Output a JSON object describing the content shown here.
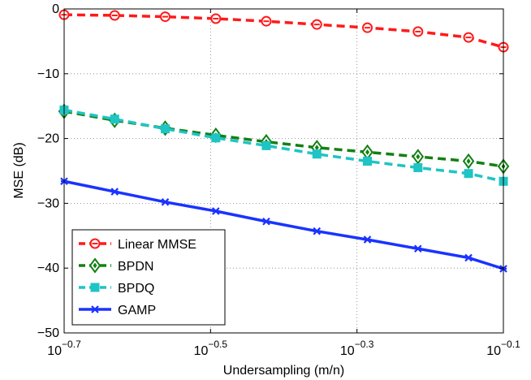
{
  "chart_data": {
    "type": "line",
    "title": "",
    "xlabel": "Undersampling (m/n)",
    "ylabel": "MSE (dB)",
    "x_scale": "log",
    "xlim": [
      0.19953,
      0.79433
    ],
    "ylim": [
      -50,
      0
    ],
    "grid": true,
    "legend_position": "bottom-left",
    "x_ticks": [
      {
        "value": 0.19953,
        "base": "10",
        "exp": "−0.7"
      },
      {
        "value": 0.31623,
        "base": "10",
        "exp": "−0.5"
      },
      {
        "value": 0.50119,
        "base": "10",
        "exp": "−0.3"
      },
      {
        "value": 0.79433,
        "base": "10",
        "exp": "−0.1"
      }
    ],
    "y_ticks": [
      {
        "value": 0,
        "label": "0"
      },
      {
        "value": -10,
        "label": "−10"
      },
      {
        "value": -20,
        "label": "−20"
      },
      {
        "value": -30,
        "label": "−30"
      },
      {
        "value": -40,
        "label": "−40"
      },
      {
        "value": -50,
        "label": "−50"
      }
    ],
    "x": [
      0.1995,
      0.2339,
      0.2742,
      0.3215,
      0.3768,
      0.4418,
      0.5179,
      0.6072,
      0.7118,
      0.8343
    ],
    "series": [
      {
        "name": "Linear MMSE",
        "color": "#ff1a1a",
        "dash": "dash",
        "marker": "circle",
        "values": [
          -0.9,
          -1.0,
          -1.2,
          -1.5,
          -1.9,
          -2.4,
          -2.9,
          -3.5,
          -4.4,
          -5.9
        ]
      },
      {
        "name": "BPDN",
        "color": "#138013",
        "dash": "dash",
        "marker": "diamond",
        "values": [
          -15.8,
          -17.2,
          -18.4,
          -19.5,
          -20.5,
          -21.4,
          -22.1,
          -22.8,
          -23.5,
          -24.3
        ]
      },
      {
        "name": "BPDQ",
        "color": "#1fc4c4",
        "dash": "dash",
        "marker": "square",
        "values": [
          -15.6,
          -17.0,
          -18.5,
          -19.9,
          -21.1,
          -22.4,
          -23.5,
          -24.5,
          -25.4,
          -26.6
        ]
      },
      {
        "name": "GAMP",
        "color": "#1a33ff",
        "dash": "solid",
        "marker": "x",
        "values": [
          -26.6,
          -28.2,
          -29.8,
          -31.2,
          -32.8,
          -34.3,
          -35.6,
          -37.0,
          -38.4,
          -40.1
        ]
      }
    ]
  }
}
